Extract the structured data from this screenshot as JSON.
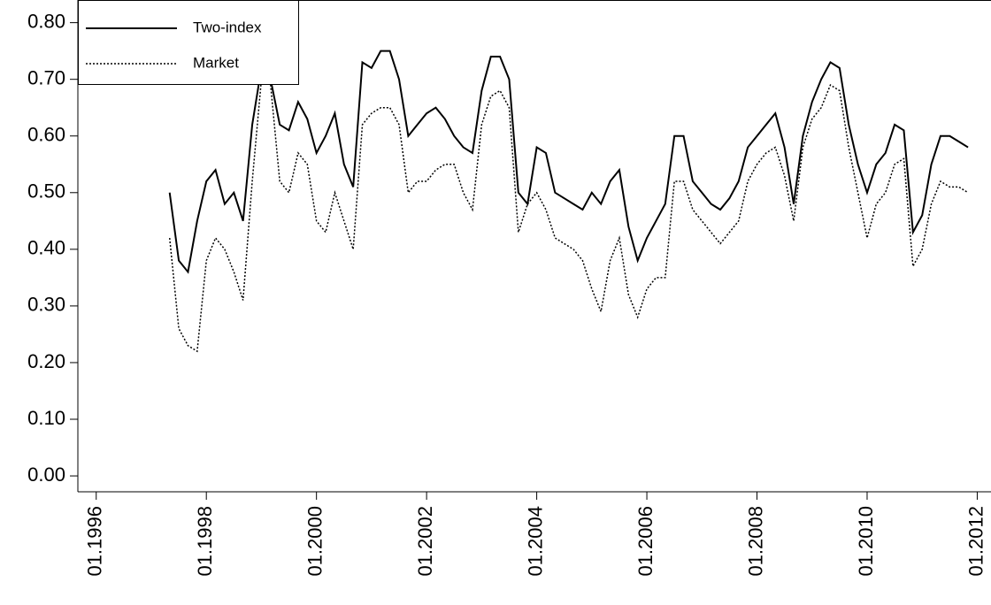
{
  "chart_data": {
    "type": "line",
    "x": [
      "1997-05",
      "1997-07",
      "1997-09",
      "1997-11",
      "1998-01",
      "1998-03",
      "1998-05",
      "1998-07",
      "1998-09",
      "1998-11",
      "1999-01",
      "1999-03",
      "1999-05",
      "1999-07",
      "1999-09",
      "1999-11",
      "2000-01",
      "2000-03",
      "2000-05",
      "2000-07",
      "2000-09",
      "2000-11",
      "2001-01",
      "2001-03",
      "2001-05",
      "2001-07",
      "2001-09",
      "2001-11",
      "2002-01",
      "2002-03",
      "2002-05",
      "2002-07",
      "2002-09",
      "2002-11",
      "2003-01",
      "2003-03",
      "2003-05",
      "2003-07",
      "2003-09",
      "2003-11",
      "2004-01",
      "2004-03",
      "2004-05",
      "2004-07",
      "2004-09",
      "2004-11",
      "2005-01",
      "2005-03",
      "2005-05",
      "2005-07",
      "2005-09",
      "2005-11",
      "2006-01",
      "2006-03",
      "2006-05",
      "2006-07",
      "2006-09",
      "2006-11",
      "2007-01",
      "2007-03",
      "2007-05",
      "2007-07",
      "2007-09",
      "2007-11",
      "2008-01",
      "2008-03",
      "2008-05",
      "2008-07",
      "2008-09",
      "2008-11",
      "2009-01",
      "2009-03",
      "2009-05",
      "2009-07",
      "2009-09",
      "2009-11",
      "2010-01",
      "2010-03",
      "2010-05",
      "2010-07",
      "2010-09",
      "2010-11",
      "2011-01",
      "2011-03",
      "2011-05",
      "2011-07",
      "2011-09",
      "2011-11"
    ],
    "series": [
      {
        "name": "Two-index",
        "color": "#000000",
        "dash": "solid",
        "values": [
          0.5,
          0.38,
          0.36,
          0.45,
          0.52,
          0.54,
          0.48,
          0.5,
          0.45,
          0.62,
          0.72,
          0.7,
          0.62,
          0.61,
          0.66,
          0.63,
          0.57,
          0.6,
          0.64,
          0.55,
          0.51,
          0.73,
          0.72,
          0.75,
          0.75,
          0.7,
          0.6,
          0.62,
          0.64,
          0.65,
          0.63,
          0.6,
          0.58,
          0.57,
          0.68,
          0.74,
          0.74,
          0.7,
          0.5,
          0.48,
          0.58,
          0.57,
          0.5,
          0.49,
          0.48,
          0.47,
          0.5,
          0.48,
          0.52,
          0.54,
          0.44,
          0.38,
          0.42,
          0.45,
          0.48,
          0.6,
          0.6,
          0.52,
          0.5,
          0.48,
          0.47,
          0.49,
          0.52,
          0.58,
          0.6,
          0.62,
          0.64,
          0.58,
          0.48,
          0.6,
          0.66,
          0.7,
          0.73,
          0.72,
          0.62,
          0.55,
          0.5,
          0.55,
          0.57,
          0.62,
          0.61,
          0.43,
          0.46,
          0.55,
          0.6,
          0.6,
          0.59,
          0.58
        ]
      },
      {
        "name": "Market",
        "color": "#000000",
        "dash": "dotted",
        "values": [
          0.42,
          0.26,
          0.23,
          0.22,
          0.38,
          0.42,
          0.4,
          0.36,
          0.31,
          0.52,
          0.7,
          0.69,
          0.52,
          0.5,
          0.57,
          0.55,
          0.45,
          0.43,
          0.5,
          0.45,
          0.4,
          0.62,
          0.64,
          0.65,
          0.65,
          0.62,
          0.5,
          0.52,
          0.52,
          0.54,
          0.55,
          0.55,
          0.5,
          0.47,
          0.62,
          0.67,
          0.68,
          0.65,
          0.43,
          0.48,
          0.5,
          0.47,
          0.42,
          0.41,
          0.4,
          0.38,
          0.33,
          0.29,
          0.38,
          0.42,
          0.32,
          0.28,
          0.33,
          0.35,
          0.35,
          0.52,
          0.52,
          0.47,
          0.45,
          0.43,
          0.41,
          0.43,
          0.45,
          0.52,
          0.55,
          0.57,
          0.58,
          0.53,
          0.45,
          0.58,
          0.63,
          0.65,
          0.69,
          0.68,
          0.58,
          0.5,
          0.42,
          0.48,
          0.5,
          0.55,
          0.56,
          0.37,
          0.4,
          0.48,
          0.52,
          0.51,
          0.51,
          0.5
        ]
      }
    ],
    "xlim": [
      "1995-09",
      "2012-04"
    ],
    "xticks": [
      {
        "value": "1996-01",
        "label": "01.1996"
      },
      {
        "value": "1998-01",
        "label": "01.1998"
      },
      {
        "value": "2000-01",
        "label": "01.2000"
      },
      {
        "value": "2002-01",
        "label": "01.2002"
      },
      {
        "value": "2004-01",
        "label": "01.2004"
      },
      {
        "value": "2006-01",
        "label": "01.2006"
      },
      {
        "value": "2008-01",
        "label": "01.2008"
      },
      {
        "value": "2010-01",
        "label": "01.2010"
      },
      {
        "value": "2012-01",
        "label": "01.2012"
      }
    ],
    "ylim": [
      -0.028,
      0.84
    ],
    "yticks": [
      {
        "value": 0,
        "label": "0.00"
      },
      {
        "value": 0.1,
        "label": "0.10"
      },
      {
        "value": 0.2,
        "label": "0.20"
      },
      {
        "value": 0.3,
        "label": "0.30"
      },
      {
        "value": 0.4,
        "label": "0.40"
      },
      {
        "value": 0.5,
        "label": "0.50"
      },
      {
        "value": 0.6,
        "label": "0.60"
      },
      {
        "value": 0.7,
        "label": "0.70"
      },
      {
        "value": 0.8,
        "label": "0.80"
      }
    ],
    "legend": "upper-left"
  }
}
